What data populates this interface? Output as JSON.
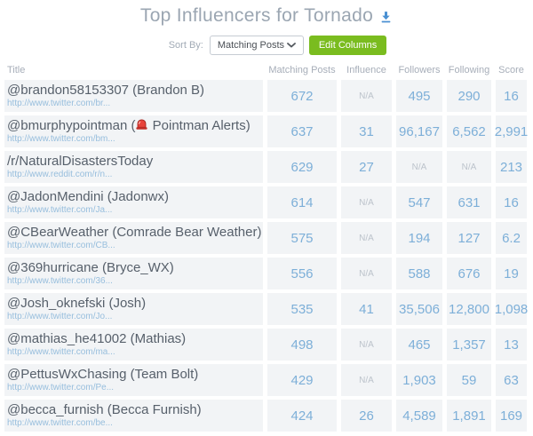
{
  "header": {
    "title": "Top Influencers for Tornado"
  },
  "controls": {
    "sort_by_label": "Sort By:",
    "sort_select_value": "Matching Posts",
    "edit_columns_label": "Edit Columns"
  },
  "colors": {
    "value_blue": "#7dafd8",
    "link_blue": "#97bedd",
    "button_green": "#7abc1f",
    "download_blue": "#4a90d2",
    "siren_red": "#e8433b",
    "cell_bg": "#f2f4f6"
  },
  "icons": {
    "download": "download-icon",
    "chevron": "chevron-down-icon",
    "siren": "siren-icon"
  },
  "table": {
    "columns": [
      "Title",
      "Matching Posts",
      "Influence",
      "Followers",
      "Following",
      "Score"
    ],
    "rows": [
      {
        "name": "@brandon58153307 (Brandon B)",
        "url": "http://www.twitter.com/br...",
        "matching_posts": "672",
        "influence": "N/A",
        "followers": "495",
        "following": "290",
        "score": "16"
      },
      {
        "name": "@bmurphypointman (🚨 Pointman Alerts)",
        "url": "http://www.twitter.com/bm...",
        "matching_posts": "637",
        "influence": "31",
        "followers": "96,167",
        "following": "6,562",
        "score": "2,991"
      },
      {
        "name": "/r/NaturalDisastersToday",
        "url": "http://www.reddit.com/r/n...",
        "matching_posts": "629",
        "influence": "27",
        "followers": "N/A",
        "following": "N/A",
        "score": "213"
      },
      {
        "name": "@JadonMendini (Jadonwx)",
        "url": "http://www.twitter.com/Ja...",
        "matching_posts": "614",
        "influence": "N/A",
        "followers": "547",
        "following": "631",
        "score": "16"
      },
      {
        "name": "@CBearWeather (Comrade Bear Weather)",
        "url": "http://www.twitter.com/CB...",
        "matching_posts": "575",
        "influence": "N/A",
        "followers": "194",
        "following": "127",
        "score": "6.2"
      },
      {
        "name": "@369hurricane (Bryce_WX)",
        "url": "http://www.twitter.com/36...",
        "matching_posts": "556",
        "influence": "N/A",
        "followers": "588",
        "following": "676",
        "score": "19"
      },
      {
        "name": "@Josh_oknefski (Josh)",
        "url": "http://www.twitter.com/Jo...",
        "matching_posts": "535",
        "influence": "41",
        "followers": "35,506",
        "following": "12,800",
        "score": "1,098"
      },
      {
        "name": "@mathias_he41002 (Mathias)",
        "url": "http://www.twitter.com/ma...",
        "matching_posts": "498",
        "influence": "N/A",
        "followers": "465",
        "following": "1,357",
        "score": "13"
      },
      {
        "name": "@PettusWxChasing (Team Bolt)",
        "url": "http://www.twitter.com/Pe...",
        "matching_posts": "429",
        "influence": "N/A",
        "followers": "1,903",
        "following": "59",
        "score": "63"
      },
      {
        "name": "@becca_furnish (Becca Furnish)",
        "url": "http://www.twitter.com/be...",
        "matching_posts": "424",
        "influence": "26",
        "followers": "4,589",
        "following": "1,891",
        "score": "169"
      }
    ]
  }
}
